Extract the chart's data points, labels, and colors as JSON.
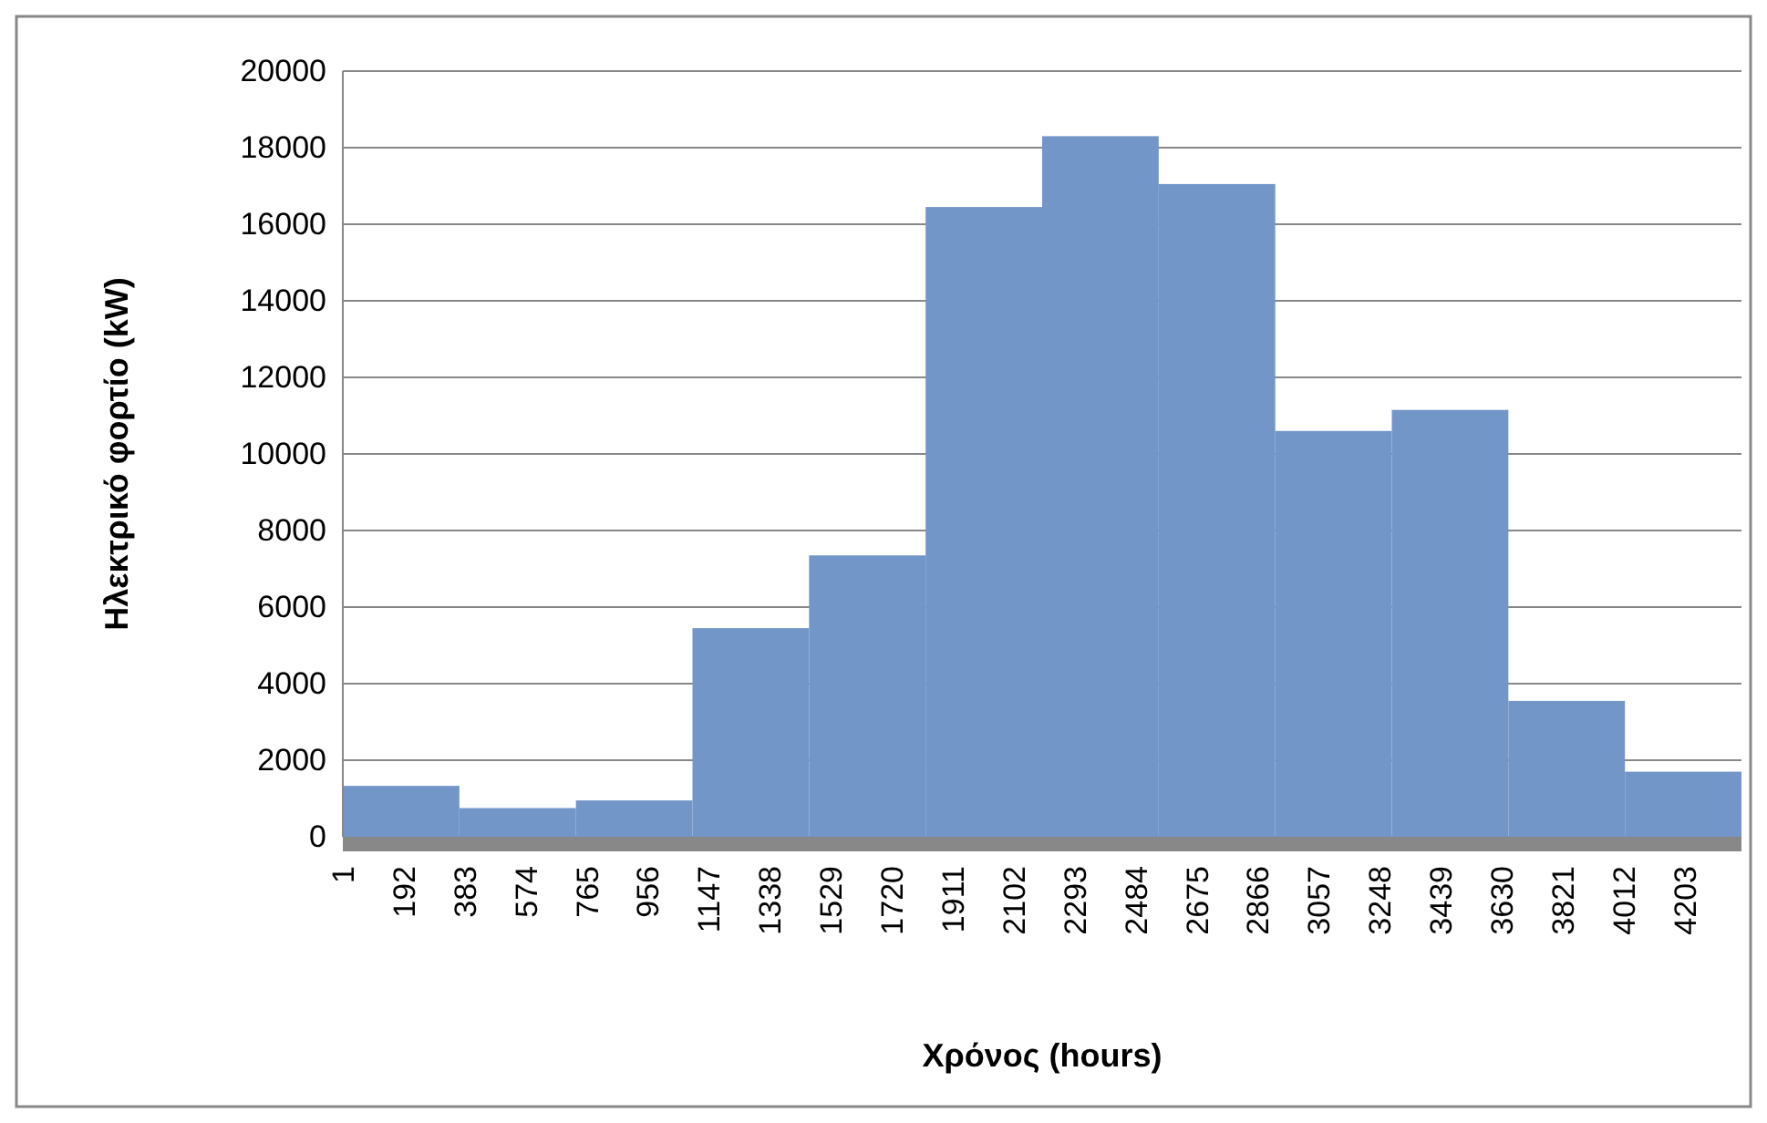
{
  "chart_data": {
    "type": "histogram",
    "xlabel": "Χρόνος (hours)",
    "ylabel": "Ηλεκτρικό φορτίο (kW)",
    "bins": [
      1,
      366,
      731,
      1096,
      1461,
      1826,
      2191,
      2556,
      2921,
      3286,
      3651,
      4016,
      4381
    ],
    "values": [
      1330,
      750,
      950,
      5450,
      7350,
      16450,
      18300,
      17050,
      10600,
      11150,
      3550,
      1700
    ],
    "color": "#7396c9",
    "xlim": [
      1,
      4381
    ],
    "xticks": [
      1,
      192,
      383,
      574,
      765,
      956,
      1147,
      1338,
      1529,
      1720,
      1911,
      2102,
      2293,
      2484,
      2675,
      2866,
      3057,
      3248,
      3439,
      3630,
      3821,
      4012,
      4203
    ],
    "ylim": [
      0,
      20000
    ],
    "yticks": [
      0,
      2000,
      4000,
      6000,
      8000,
      10000,
      12000,
      14000,
      16000,
      18000,
      20000
    ],
    "grid": "y",
    "legend": false
  }
}
